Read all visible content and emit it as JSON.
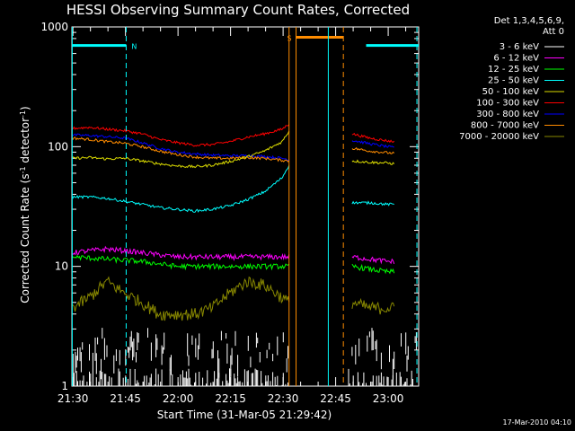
{
  "chart_data": {
    "type": "line",
    "title": "HESSI Observing Summary Count Rates, Corrected",
    "xlabel": "Start Time (31-Mar-05 21:29:42)",
    "ylabel": "Corrected Count Rate (s",
    "ylabel_sup1": "-1",
    "ylabel_mid": " detector",
    "ylabel_sup2": "-1",
    "ylabel_end": ")",
    "x_unit": "minutes since 21:29:42",
    "xlim": [
      0,
      99
    ],
    "ylim": [
      1,
      1000
    ],
    "y_scale": "log",
    "x_ticks": [
      {
        "value": 0.3,
        "label": "21:30"
      },
      {
        "value": 15.3,
        "label": "21:45"
      },
      {
        "value": 30.3,
        "label": "22:00"
      },
      {
        "value": 45.3,
        "label": "22:15"
      },
      {
        "value": 60.3,
        "label": "22:30"
      },
      {
        "value": 75.3,
        "label": "22:45"
      },
      {
        "value": 90.3,
        "label": "23:00"
      }
    ],
    "y_ticks": [
      {
        "value": 1,
        "label": "1"
      },
      {
        "value": 10,
        "label": "10"
      },
      {
        "value": 100,
        "label": "100"
      },
      {
        "value": 1000,
        "label": "1000"
      }
    ],
    "legend": {
      "placement": "right",
      "header_line1": "Det 1,3,4,5,6,9,",
      "header_line2": "Att 0",
      "entries": [
        {
          "label": "3 - 6 keV",
          "color": "#000000"
        },
        {
          "label": "6 - 12 keV",
          "color": "#ff00ff"
        },
        {
          "label": "12 - 25 keV",
          "color": "#00ff00"
        },
        {
          "label": "25 - 50 keV",
          "color": "#00ffff"
        },
        {
          "label": "50 - 100 keV",
          "color": "#dddd00"
        },
        {
          "label": "100 - 300 keV",
          "color": "#ff0000"
        },
        {
          "label": "300 - 800 keV",
          "color": "#0000ff"
        },
        {
          "label": "800 - 7000 keV",
          "color": "#ff8c00"
        },
        {
          "label": "7000 - 20000 keV",
          "color": "#888800"
        }
      ]
    },
    "series": [
      {
        "color": "#0000ff",
        "segments": [
          {
            "x": [
              0,
              5,
              10,
              15,
              20,
              25,
              30,
              35,
              40,
              45,
              50,
              55,
              60,
              62
            ],
            "y": [
              125,
              124,
              121,
              118,
              108,
              97,
              90,
              87,
              85,
              84,
              84,
              83,
              80,
              78
            ]
          },
          {
            "x": [
              80,
              85,
              90,
              92
            ],
            "y": [
              113,
              106,
              100,
              98
            ]
          }
        ]
      },
      {
        "color": "#ff0000",
        "segments": [
          {
            "x": [
              0,
              5,
              10,
              15,
              20,
              25,
              30,
              35,
              40,
              45,
              50,
              55,
              60,
              62
            ],
            "y": [
              142,
              145,
              140,
              136,
              128,
              115,
              108,
              103,
              104,
              110,
              120,
              128,
              140,
              155
            ]
          },
          {
            "x": [
              80,
              85,
              90,
              92
            ],
            "y": [
              128,
              118,
              112,
              110
            ]
          }
        ]
      },
      {
        "color": "#ff8c00",
        "segments": [
          {
            "x": [
              0,
              5,
              10,
              15,
              20,
              25,
              30,
              35,
              40,
              45,
              50,
              55,
              60,
              62
            ],
            "y": [
              118,
              115,
              110,
              107,
              100,
              92,
              86,
              82,
              80,
              80,
              81,
              80,
              77,
              76
            ]
          },
          {
            "x": [
              80,
              85,
              90,
              92
            ],
            "y": [
              97,
              92,
              89,
              88
            ]
          }
        ]
      },
      {
        "color": "#dddd00",
        "segments": [
          {
            "x": [
              0,
              5,
              10,
              15,
              20,
              25,
              30,
              35,
              40,
              45,
              50,
              55,
              60,
              62
            ],
            "y": [
              80,
              81,
              79,
              80,
              76,
              72,
              69,
              68,
              70,
              75,
              82,
              92,
              110,
              135
            ]
          },
          {
            "x": [
              80,
              85,
              90,
              92
            ],
            "y": [
              76,
              74,
              73,
              72
            ]
          }
        ]
      },
      {
        "color": "#00ffff",
        "segments": [
          {
            "x": [
              0,
              5,
              10,
              15,
              20,
              25,
              30,
              35,
              40,
              45,
              50,
              55,
              60,
              62
            ],
            "y": [
              38,
              38,
              37,
              35,
              33,
              31,
              30,
              29,
              30,
              32,
              36,
              42,
              55,
              70
            ]
          },
          {
            "x": [
              80,
              85,
              90,
              92
            ],
            "y": [
              34,
              34,
              33,
              33
            ]
          }
        ]
      },
      {
        "color": "#ff00ff",
        "segments": [
          {
            "x": [
              0,
              10,
              20,
              30,
              40,
              50,
              60,
              62
            ],
            "y": [
              13,
              14,
              13,
              12,
              12,
              12,
              12,
              12
            ]
          },
          {
            "x": [
              80,
              85,
              90,
              92
            ],
            "y": [
              12,
              11.5,
              11,
              11
            ]
          }
        ]
      },
      {
        "color": "#00ff00",
        "segments": [
          {
            "x": [
              0,
              10,
              20,
              30,
              40,
              50,
              60,
              62
            ],
            "y": [
              12,
              11.5,
              11,
              10,
              10,
              10,
              10,
              10
            ]
          },
          {
            "x": [
              80,
              85,
              90,
              92
            ],
            "y": [
              10,
              9.5,
              9,
              9
            ]
          }
        ]
      },
      {
        "color": "#888800",
        "segments": [
          {
            "x": [
              0,
              5,
              10,
              15,
              20,
              25,
              30,
              35,
              40,
              45,
              50,
              55,
              60,
              62
            ],
            "y": [
              4.5,
              5.5,
              7.5,
              6,
              5,
              4,
              4,
              4,
              4.5,
              6,
              7.5,
              7,
              5.5,
              5
            ]
          },
          {
            "x": [
              80,
              85,
              90,
              92
            ],
            "y": [
              5,
              4.5,
              4.5,
              4.5
            ]
          }
        ]
      }
    ],
    "markers": [
      {
        "kind": "bar",
        "label": "N",
        "color": "#00ffff",
        "x_start": 0,
        "x_end": 15.5,
        "y": 700
      },
      {
        "kind": "bar",
        "label": "",
        "color": "#00ffff",
        "x_start": 84,
        "x_end": 99,
        "y": 700
      },
      {
        "kind": "bar",
        "label": "S",
        "color": "#ff8c00",
        "x_start": 64,
        "x_end": 77.5,
        "y": 820
      },
      {
        "kind": "solid",
        "color": "#00ffff",
        "x": 0.1
      },
      {
        "kind": "dashed",
        "color": "#00ffff",
        "x": 15.5
      },
      {
        "kind": "solid",
        "color": "#ff8c00",
        "x": 62
      },
      {
        "kind": "solid",
        "color": "#ff8c00",
        "x": 64
      },
      {
        "kind": "solid",
        "color": "#00ffff",
        "x": 73.2
      },
      {
        "kind": "dashed",
        "color": "#ff8c00",
        "x": 77.5
      },
      {
        "kind": "dashed",
        "color": "#00ffff",
        "x": 98.5
      }
    ]
  },
  "footer": {
    "timestamp": "17-Mar-2010 04:10"
  }
}
